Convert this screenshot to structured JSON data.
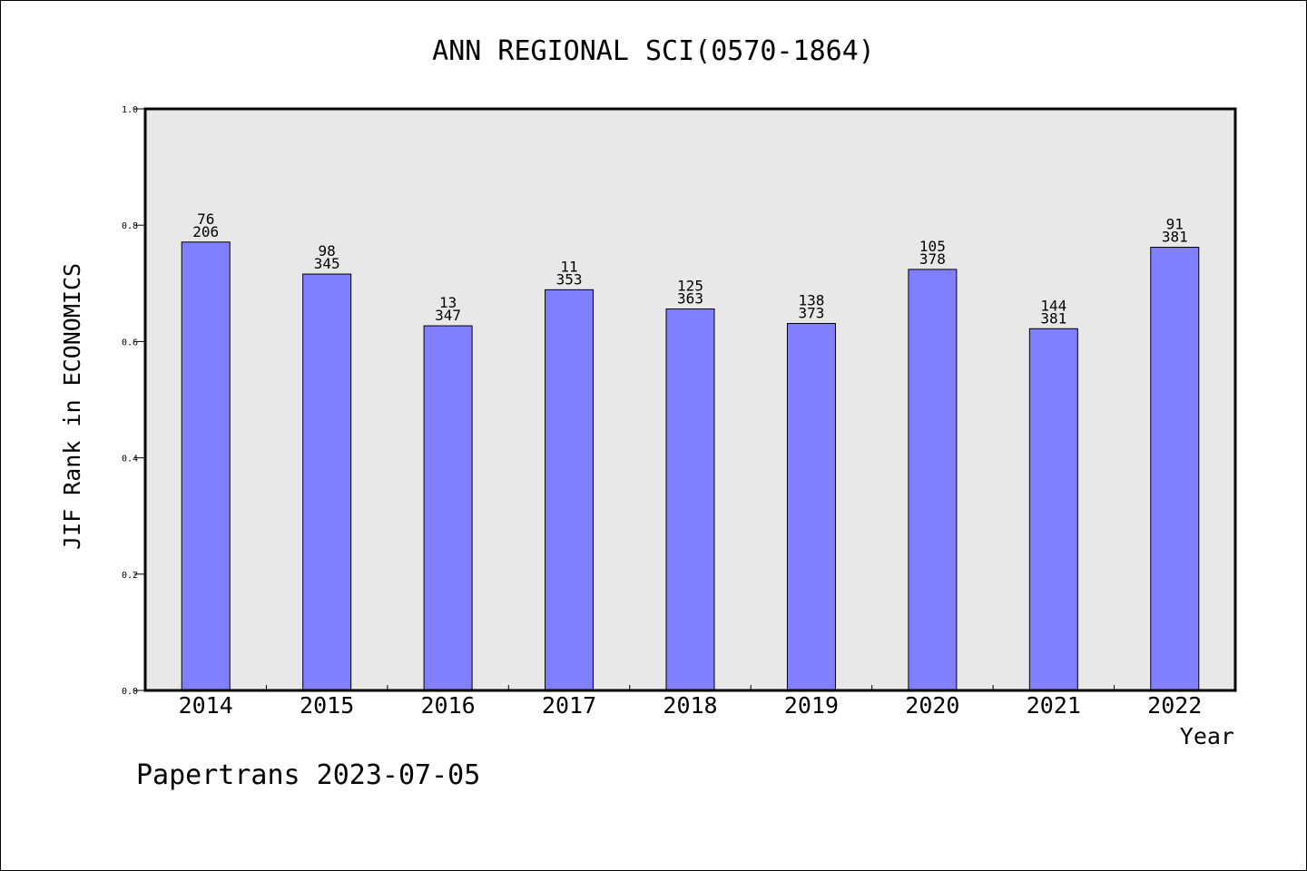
{
  "chart_data": {
    "type": "bar",
    "title": "ANN REGIONAL SCI(0570-1864)",
    "xlabel": "Year",
    "ylabel": "JIF Rank in ECONOMICS",
    "categories": [
      "2014",
      "2015",
      "2016",
      "2017",
      "2018",
      "2019",
      "2020",
      "2021",
      "2022"
    ],
    "values": [
      0.771,
      0.716,
      0.627,
      0.689,
      0.656,
      0.631,
      0.724,
      0.622,
      0.762
    ],
    "rank_labels": [
      "76",
      "98",
      "13",
      "11",
      "125",
      "138",
      "105",
      "144",
      "91"
    ],
    "total_labels": [
      "206",
      "345",
      "347",
      "353",
      "363",
      "373",
      "378",
      "381",
      "381"
    ],
    "ylim": [
      0,
      1.0
    ],
    "yticks": [
      "0.0",
      "0.2",
      "0.4",
      "0.6",
      "0.8",
      "1.0"
    ],
    "bar_color": "#8080ff",
    "plot_background": "#e8e8e8",
    "grid": false,
    "legend": "none"
  },
  "footer": {
    "text": "Papertrans 2023-07-05"
  }
}
